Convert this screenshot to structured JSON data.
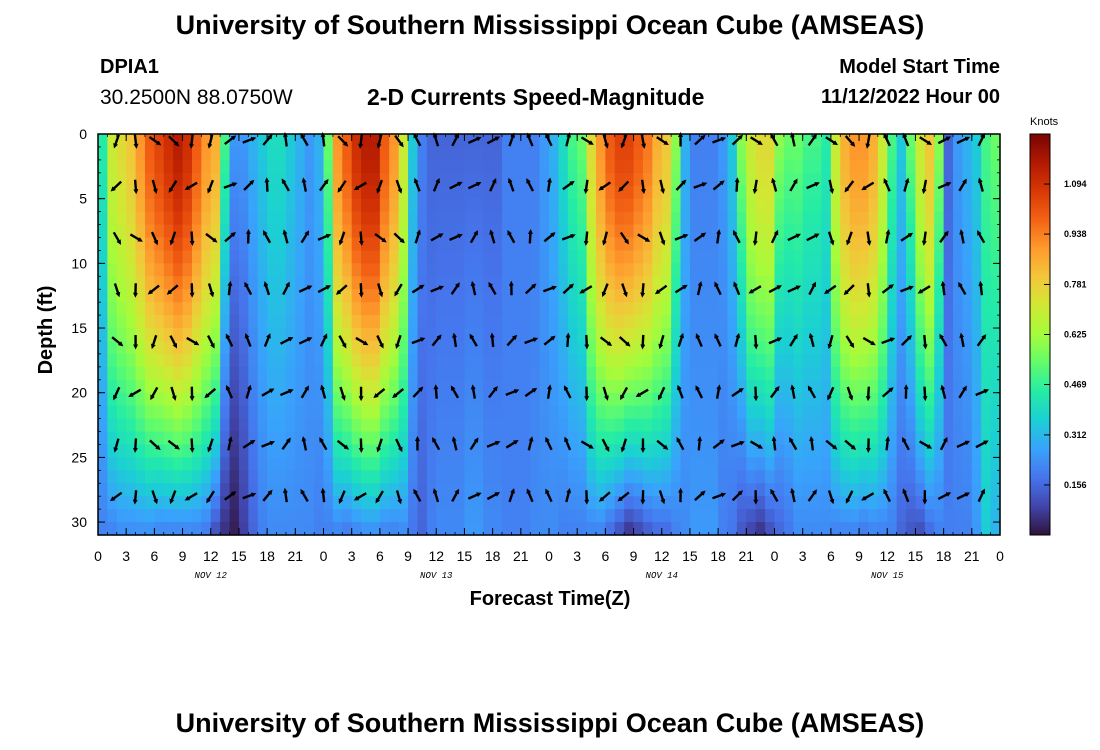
{
  "header": {
    "title": "University of Southern Mississippi Ocean Cube (AMSEAS)",
    "station": "DPIA1",
    "coords": "30.2500N  88.0750W",
    "subtitle": "2-D Currents Speed-Magnitude",
    "model_start_label": "Model Start Time",
    "model_start_value": "11/12/2022 Hour 00"
  },
  "footer": {
    "title": "University of Southern Mississippi Ocean Cube (AMSEAS)"
  },
  "chart_data": {
    "type": "heatmap",
    "title": "2-D Currents Speed-Magnitude",
    "xlabel": "Forecast Time(Z)",
    "ylabel": "Depth (ft)",
    "x_tick_labels": [
      "0",
      "3",
      "6",
      "9",
      "12",
      "15",
      "18",
      "21",
      "0",
      "3",
      "6",
      "9",
      "12",
      "15",
      "18",
      "21",
      "0",
      "3",
      "6",
      "9",
      "12",
      "15",
      "18",
      "21",
      "0",
      "3",
      "6",
      "9",
      "12",
      "15",
      "18",
      "21",
      "0"
    ],
    "date_labels": [
      {
        "label": "NOV 12",
        "hour": 12
      },
      {
        "label": "NOV 13",
        "hour": 36
      },
      {
        "label": "NOV 14",
        "hour": 60
      },
      {
        "label": "NOV 15",
        "hour": 84
      }
    ],
    "xlim_hours": [
      0,
      96
    ],
    "ylim_ft": [
      0,
      31
    ],
    "y_ticks": [
      0,
      5,
      10,
      15,
      20,
      25,
      30
    ],
    "colorbar": {
      "label": "Knots",
      "ticks": [
        "1.094",
        "0.938",
        "0.781",
        "0.625",
        "0.469",
        "0.312",
        "0.156"
      ],
      "range": [
        0,
        1.25
      ]
    },
    "colormap": [
      "#30123b",
      "#4145ab",
      "#4675ed",
      "#39a2fc",
      "#1bcfd4",
      "#24eca6",
      "#61fc6c",
      "#a4fc3b",
      "#d1e834",
      "#f3c63a",
      "#fe9b2d",
      "#f36315",
      "#d93806",
      "#b11901",
      "#7a0402"
    ],
    "speed_profile_hours": [
      0,
      1,
      2,
      3,
      4,
      5,
      6,
      7,
      8,
      9,
      10,
      11,
      12,
      13,
      14,
      15,
      16,
      17,
      18,
      19,
      20,
      21,
      22,
      23,
      24,
      25,
      26,
      27,
      28,
      29,
      30,
      31,
      32,
      33,
      34,
      35,
      36,
      37,
      38,
      39,
      40,
      41,
      42,
      43,
      44,
      45,
      46,
      47,
      48,
      49,
      50,
      51,
      52,
      53,
      54,
      55,
      56,
      57,
      58,
      59,
      60,
      61,
      62,
      63,
      64,
      65,
      66,
      67,
      68,
      69,
      70,
      71,
      72,
      73,
      74,
      75,
      76,
      77,
      78,
      79,
      80,
      81,
      82,
      83,
      84,
      85,
      86,
      87,
      88,
      89,
      90,
      91,
      92,
      93,
      94,
      95,
      96
    ],
    "surface_speed_knots": [
      0.45,
      0.7,
      0.75,
      0.8,
      0.9,
      1.0,
      1.05,
      1.1,
      1.15,
      1.1,
      1.0,
      0.9,
      0.85,
      0.5,
      0.25,
      0.25,
      0.3,
      0.35,
      0.4,
      0.4,
      0.35,
      0.3,
      0.25,
      0.3,
      0.55,
      0.9,
      1.0,
      1.1,
      1.15,
      1.15,
      1.0,
      0.9,
      0.7,
      0.35,
      0.2,
      0.15,
      0.15,
      0.15,
      0.15,
      0.15,
      0.15,
      0.15,
      0.15,
      0.2,
      0.2,
      0.2,
      0.2,
      0.25,
      0.3,
      0.4,
      0.5,
      0.55,
      0.75,
      0.9,
      1.0,
      1.05,
      1.05,
      1.0,
      0.95,
      0.85,
      0.8,
      0.6,
      0.3,
      0.2,
      0.2,
      0.2,
      0.25,
      0.35,
      0.6,
      0.7,
      0.75,
      0.75,
      0.6,
      0.55,
      0.55,
      0.5,
      0.5,
      0.45,
      0.7,
      0.85,
      0.9,
      0.9,
      0.85,
      0.7,
      0.5,
      0.35,
      0.55,
      0.7,
      0.8,
      0.6,
      0.15,
      0.25,
      0.3,
      0.35,
      0.5,
      0.55,
      0.35
    ],
    "bottom_speed_knots": [
      0.2,
      0.2,
      0.22,
      0.22,
      0.22,
      0.22,
      0.2,
      0.2,
      0.2,
      0.2,
      0.2,
      0.18,
      0.1,
      0.05,
      0.02,
      0.08,
      0.15,
      0.2,
      0.22,
      0.22,
      0.22,
      0.22,
      0.22,
      0.2,
      0.2,
      0.2,
      0.18,
      0.2,
      0.22,
      0.22,
      0.2,
      0.2,
      0.22,
      0.18,
      0.15,
      0.2,
      0.22,
      0.22,
      0.22,
      0.25,
      0.25,
      0.22,
      0.22,
      0.2,
      0.2,
      0.2,
      0.22,
      0.22,
      0.22,
      0.2,
      0.2,
      0.2,
      0.2,
      0.2,
      0.15,
      0.1,
      0.05,
      0.08,
      0.12,
      0.15,
      0.15,
      0.2,
      0.22,
      0.25,
      0.25,
      0.25,
      0.2,
      0.18,
      0.12,
      0.08,
      0.05,
      0.1,
      0.15,
      0.18,
      0.22,
      0.22,
      0.22,
      0.22,
      0.2,
      0.2,
      0.2,
      0.18,
      0.2,
      0.2,
      0.2,
      0.15,
      0.12,
      0.1,
      0.15,
      0.2,
      0.2,
      0.2,
      0.2,
      0.25,
      0.35,
      0.3,
      0.2
    ],
    "arrow_rows_ft": [
      0.5,
      4,
      8,
      12,
      16,
      20,
      24,
      28
    ],
    "arrow_interval_hours": 2
  }
}
